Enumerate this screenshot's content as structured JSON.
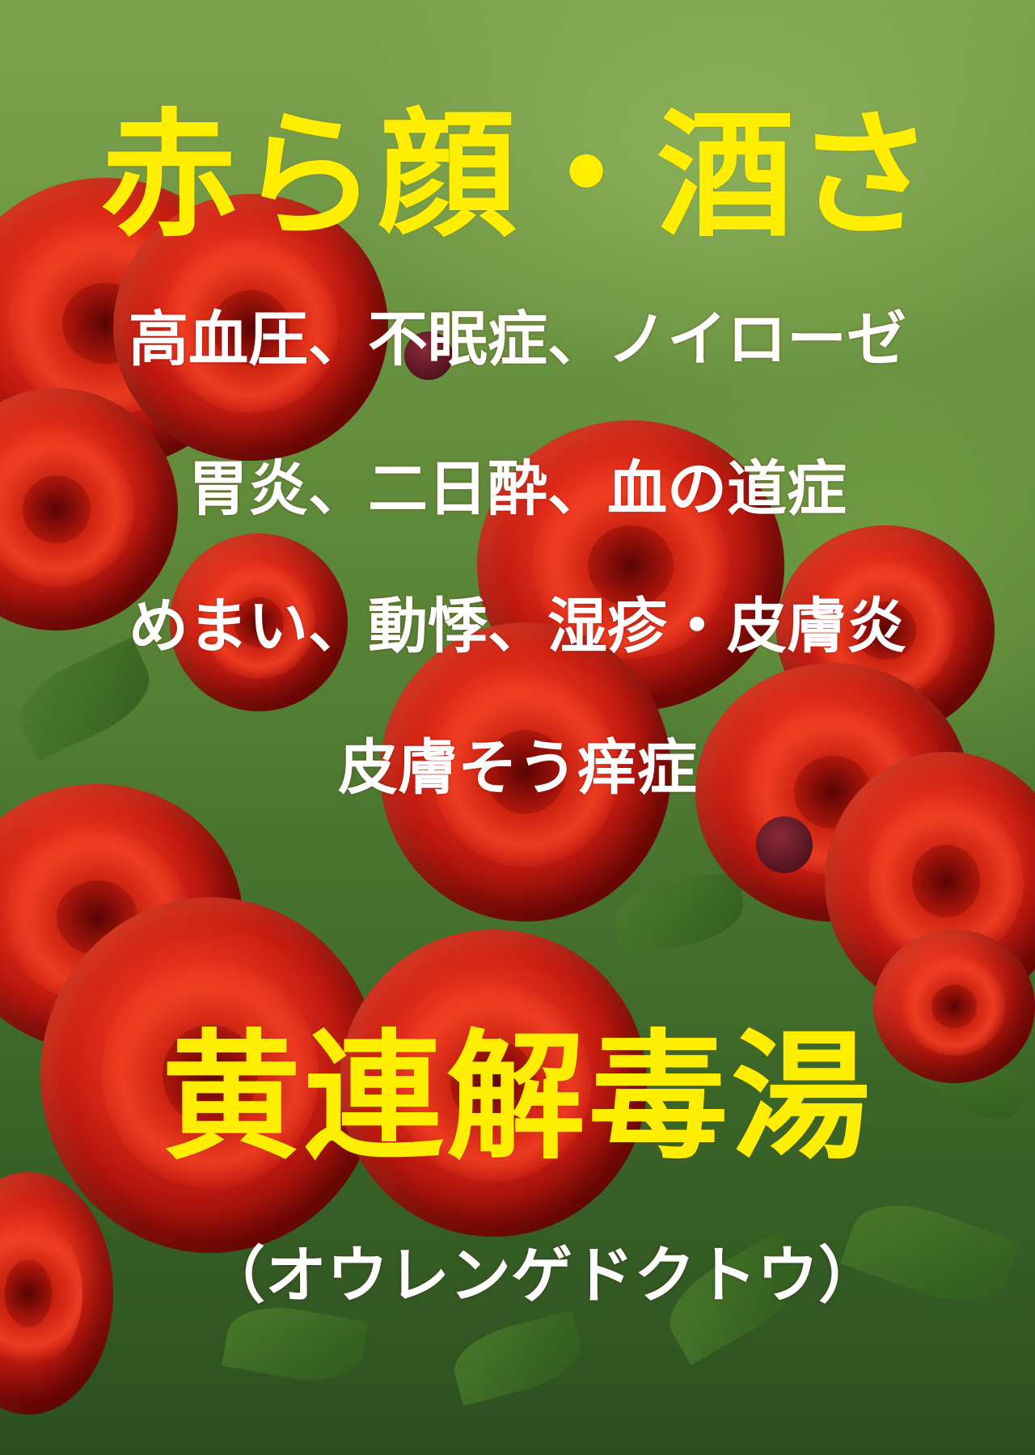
{
  "poster": {
    "title": "赤ら顔・酒さ",
    "symptoms": [
      "高血圧、不眠症、ノイローゼ",
      "胃炎、二日酔、血の道症",
      "めまい、動悸、湿疹・皮膚炎",
      "皮膚そう痒症"
    ],
    "remedy_name": "黄連解毒湯",
    "remedy_reading": "（オウレンゲドクトウ）"
  },
  "colors": {
    "title_yellow": "#ffee00",
    "symptom_white": "#ffffff",
    "rose_red": "#e8321c",
    "foliage_green": "#5f8a3a"
  }
}
